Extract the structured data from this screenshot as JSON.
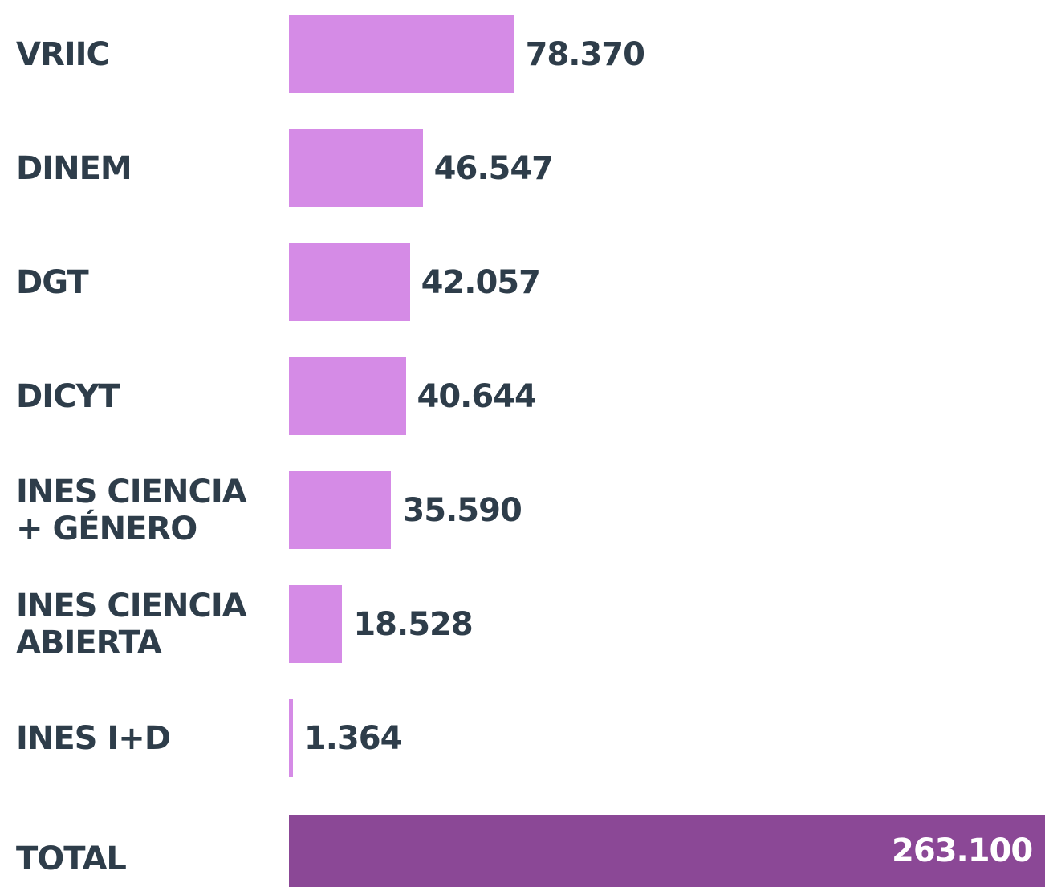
{
  "chart_data": {
    "type": "bar",
    "orientation": "horizontal",
    "categories": [
      "VRIIC",
      "DINEM",
      "DGT",
      "DICYT",
      "INES CIENCIA + GÉNERO",
      "INES CIENCIA ABIERTA",
      "INES I+D"
    ],
    "values": [
      78370,
      46547,
      42057,
      40644,
      35590,
      18528,
      1364
    ],
    "value_labels": [
      "78.370",
      "46.547",
      "42.057",
      "40.644",
      "35.590",
      "18.528",
      "1.364"
    ],
    "color": "#d58be6",
    "total": {
      "label": "TOTAL",
      "value": 263100,
      "value_label": "263.100",
      "color": "#8b4896"
    }
  }
}
